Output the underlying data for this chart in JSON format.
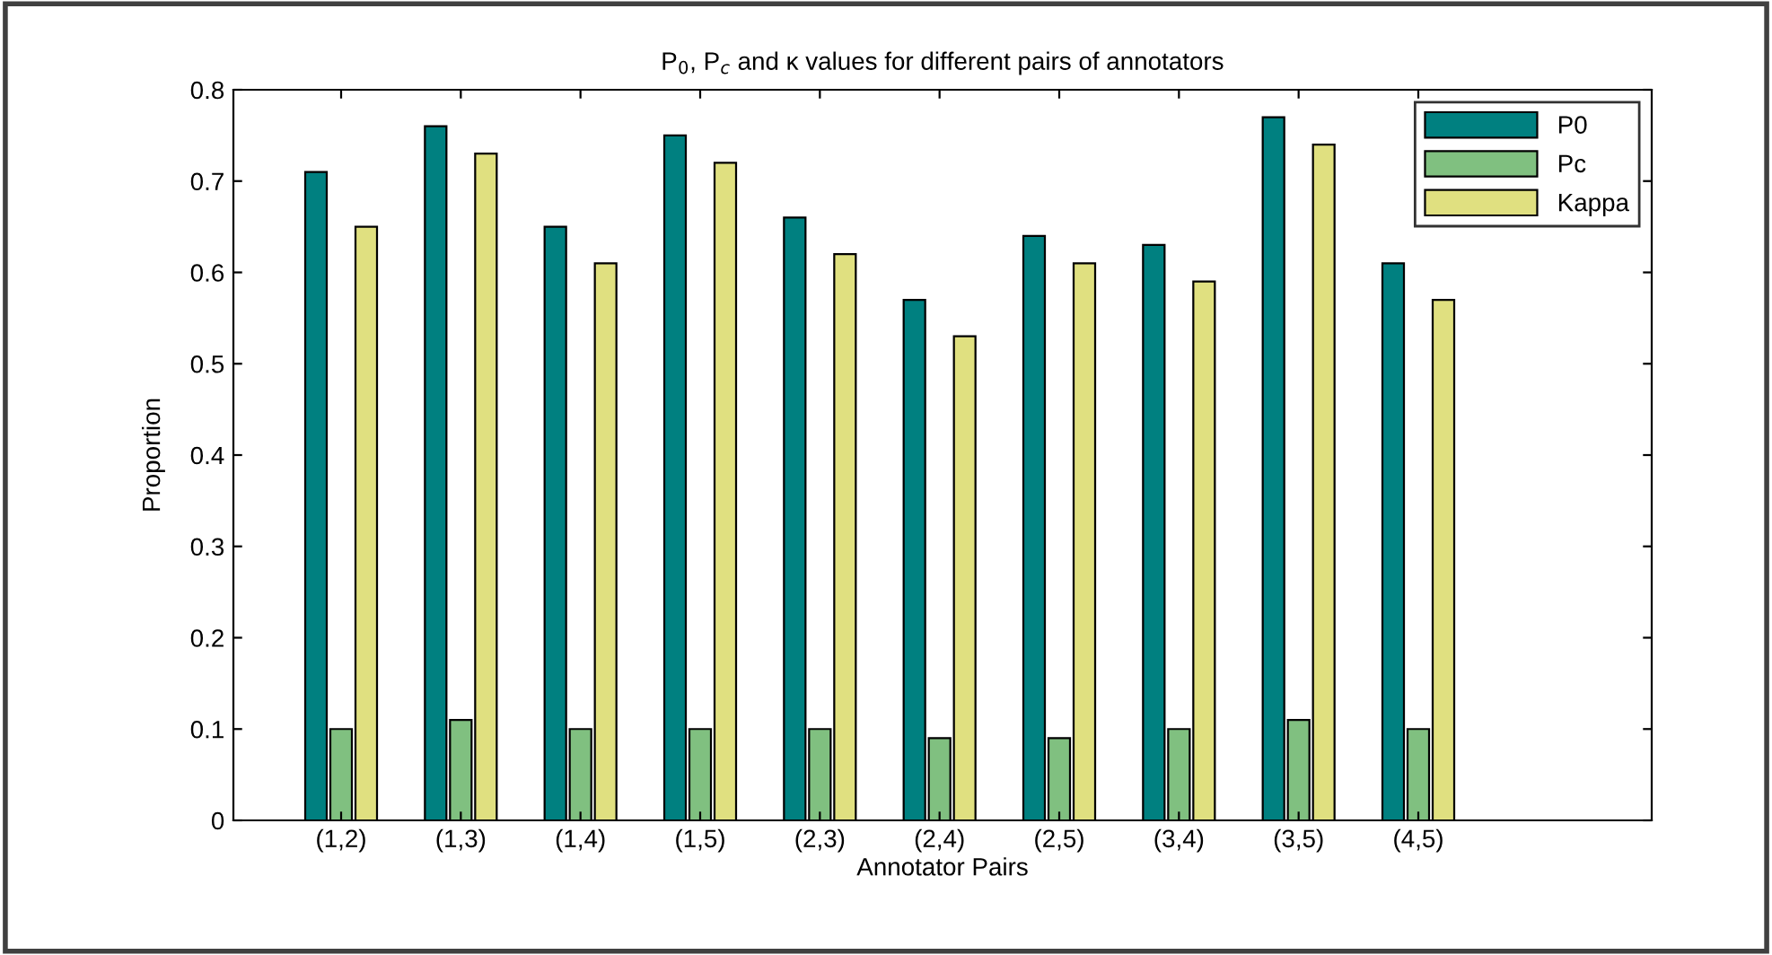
{
  "chart_data": {
    "type": "bar",
    "title": "P$_{0}$, P$_{c}$ and κ values for different pairs of annotators",
    "xlabel": "Annotator Pairs",
    "ylabel": "Proportion",
    "categories": [
      "(1,2)",
      "(1,3)",
      "(1,4)",
      "(1,5)",
      "(2,3)",
      "(2,4)",
      "(2,5)",
      "(3,4)",
      "(3,5)",
      "(4,5)"
    ],
    "series": [
      {
        "name": "P0",
        "color": "#008080",
        "values": [
          0.71,
          0.76,
          0.65,
          0.75,
          0.66,
          0.57,
          0.64,
          0.63,
          0.77,
          0.61
        ]
      },
      {
        "name": "Pc",
        "color": "#80c080",
        "values": [
          0.1,
          0.11,
          0.1,
          0.1,
          0.1,
          0.09,
          0.09,
          0.1,
          0.11,
          0.1
        ]
      },
      {
        "name": "Kappa",
        "color": "#e0e080",
        "values": [
          0.65,
          0.73,
          0.61,
          0.72,
          0.62,
          0.53,
          0.61,
          0.59,
          0.74,
          0.57
        ]
      }
    ],
    "ylim": [
      0,
      0.8
    ],
    "yticks": [
      0,
      {
        "value": 0.1,
        "label": "0.1"
      },
      {
        "value": 0.2,
        "label": "0.2"
      },
      {
        "value": 0.3,
        "label": "0.3"
      },
      {
        "value": 0.4,
        "label": "0.4"
      },
      {
        "value": 0.5,
        "label": "0.5"
      },
      {
        "value": 0.6,
        "label": "0.6"
      },
      {
        "value": 0.7,
        "label": "0.7"
      },
      {
        "value": 0.8,
        "label": "0.8"
      }
    ],
    "grid": false,
    "legend": "top right"
  }
}
